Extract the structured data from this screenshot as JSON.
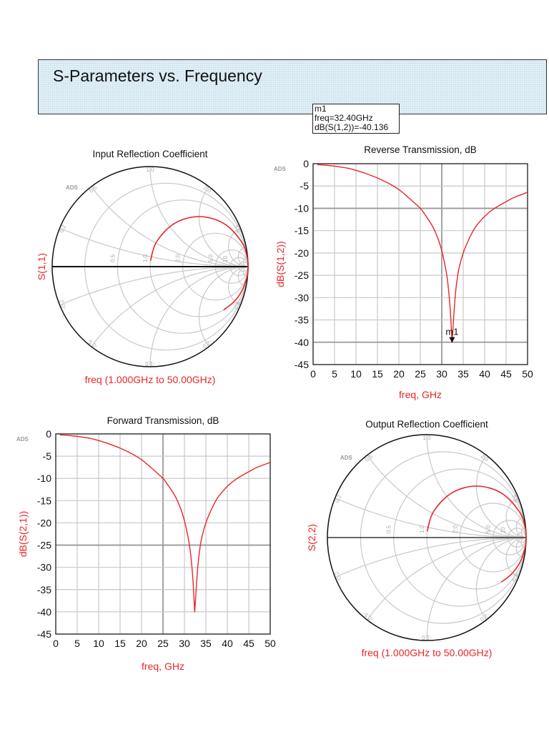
{
  "header": {
    "title": "S-Parameters vs. Frequency"
  },
  "marker": {
    "name": "m1",
    "freq_text": "freq=32.40GHz",
    "value_text": "dB(S(1,2))=-40.136",
    "freq": 32.4,
    "value": -40.136
  },
  "colors": {
    "trace": "#e8262a",
    "grid": "#c8c8c8",
    "axis_label": "#e8262a",
    "title_bg": "#e4f1f8"
  },
  "watermark": "ADS",
  "chart_data": [
    {
      "type": "smith",
      "title": "Input Reflection Coefficient",
      "ylabel": "S(1,1)",
      "xlabel": "freq (1.000GHz to 50.00GHz)",
      "resistance_circles": [
        0.2,
        0.5,
        1.0,
        2.0,
        5.0,
        10,
        20
      ],
      "reactance_arcs": [
        0.2,
        0.5,
        1.0,
        2.0,
        5.0,
        10,
        20
      ],
      "axis_labels": [
        "0.5",
        "1.0",
        "2.0",
        "5.0",
        "10"
      ],
      "edge_labels": [
        "1.0",
        "2.0",
        "5.0",
        "0.5",
        "0.2",
        "-0.2",
        "-0.5",
        "-1.0",
        "-2.0",
        "-5.0"
      ],
      "series": [
        {
          "re": [
            0.004,
            0.067,
            0.25,
            0.5,
            0.75,
            0.933,
            0.99,
            1.0,
            0.99,
            0.933,
            0.85,
            0.75
          ],
          "im": [
            0.06,
            0.25,
            0.433,
            0.5,
            0.433,
            0.25,
            0.1,
            0.0,
            -0.1,
            -0.25,
            -0.357,
            -0.433
          ]
        }
      ]
    },
    {
      "type": "line",
      "title": "Reverse Transmission, dB",
      "xlabel": "freq, GHz",
      "ylabel": "dB(S(1,2))",
      "xlim": [
        0,
        50
      ],
      "ylim": [
        -45,
        0
      ],
      "xticks": [
        "0",
        "5",
        "10",
        "15",
        "20",
        "25",
        "30",
        "35",
        "40",
        "45",
        "50"
      ],
      "yticks": [
        "0",
        "-5",
        "-10",
        "-15",
        "-20",
        "-25",
        "-30",
        "-35",
        "-40",
        "-45"
      ],
      "grid": true,
      "series": [
        {
          "x": [
            1,
            3,
            5,
            8,
            10,
            12,
            15,
            18,
            20,
            22,
            25,
            26,
            27,
            28,
            29,
            30,
            31,
            31.5,
            32,
            32.4,
            32.8,
            33.2,
            33.5,
            34,
            35,
            36,
            37,
            38,
            40,
            42,
            45,
            47,
            50
          ],
          "y": [
            -0.2,
            -0.35,
            -0.55,
            -1.0,
            -1.5,
            -2.1,
            -3.2,
            -4.6,
            -5.8,
            -7.4,
            -10,
            -11.3,
            -12.7,
            -14.3,
            -16.5,
            -19.5,
            -24,
            -27.5,
            -33,
            -40.1,
            -34,
            -29,
            -26.5,
            -23.5,
            -20,
            -17.6,
            -15.6,
            -14,
            -11.8,
            -10.2,
            -8.5,
            -7.5,
            -6.4
          ]
        }
      ],
      "markers": [
        {
          "label": "m1",
          "x": 32.4,
          "y": -40.136
        }
      ]
    },
    {
      "type": "line",
      "title": "Forward Transmission, dB",
      "xlabel": "freq, GHz",
      "ylabel": "dB(S(2,1))",
      "xlim": [
        0,
        50
      ],
      "ylim": [
        -45,
        0
      ],
      "xticks": [
        "0",
        "5",
        "10",
        "15",
        "20",
        "25",
        "30",
        "35",
        "40",
        "45",
        "50"
      ],
      "yticks": [
        "0",
        "-5",
        "-10",
        "-15",
        "-20",
        "-25",
        "-30",
        "-35",
        "-40",
        "-45"
      ],
      "grid": true,
      "series": [
        {
          "x": [
            1,
            3,
            5,
            8,
            10,
            12,
            15,
            18,
            20,
            22,
            25,
            26,
            27,
            28,
            29,
            30,
            31,
            31.5,
            32,
            32.4,
            32.8,
            33.2,
            33.5,
            34,
            35,
            36,
            37,
            38,
            40,
            42,
            45,
            47,
            50
          ],
          "y": [
            -0.2,
            -0.35,
            -0.55,
            -1.0,
            -1.5,
            -2.1,
            -3.2,
            -4.6,
            -5.8,
            -7.4,
            -10,
            -11.3,
            -12.7,
            -14.3,
            -16.5,
            -19.5,
            -24,
            -27.5,
            -33,
            -40.1,
            -34,
            -29,
            -26.5,
            -23.5,
            -20,
            -17.6,
            -15.6,
            -14,
            -11.8,
            -10.2,
            -8.5,
            -7.5,
            -6.4
          ]
        }
      ]
    },
    {
      "type": "smith",
      "title": "Output Reflection Coefficient",
      "ylabel": "S(2,2)",
      "xlabel": "freq (1.000GHz to 50.00GHz)",
      "resistance_circles": [
        0.2,
        0.5,
        1.0,
        2.0,
        5.0,
        10,
        20
      ],
      "reactance_arcs": [
        0.2,
        0.5,
        1.0,
        2.0,
        5.0,
        10,
        20
      ],
      "axis_labels": [
        "0.5",
        "1.0",
        "2.0",
        "5.0",
        "10"
      ],
      "edge_labels": [
        "1.0",
        "2.0",
        "5.0",
        "0.5",
        "0.2",
        "-0.2",
        "-0.5",
        "-1.0",
        "-2.0",
        "-5.0"
      ],
      "series": [
        {
          "re": [
            0.004,
            0.067,
            0.25,
            0.5,
            0.75,
            0.933,
            0.99,
            1.0,
            0.99,
            0.933,
            0.85,
            0.75
          ],
          "im": [
            0.06,
            0.25,
            0.433,
            0.5,
            0.433,
            0.25,
            0.1,
            0.0,
            -0.1,
            -0.25,
            -0.357,
            -0.433
          ]
        }
      ]
    }
  ]
}
